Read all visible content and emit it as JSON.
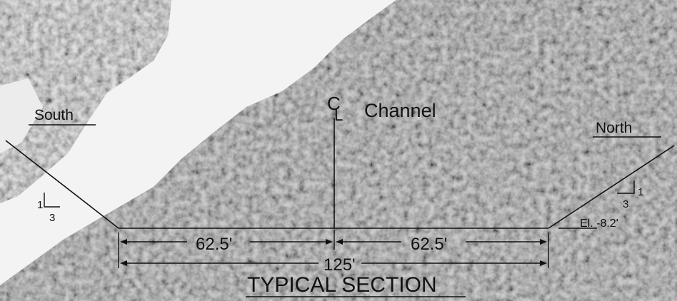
{
  "title": "TYPICAL SECTION",
  "centerline": {
    "symbol_c": "C",
    "symbol_l": "L",
    "label": "Channel"
  },
  "banks": {
    "south": "South",
    "north": "North"
  },
  "slope": {
    "rise": "1",
    "run": "3"
  },
  "dimensions": {
    "half_left": "62.5'",
    "half_right": "62.5'",
    "total": "125'"
  },
  "elevation": "El. -8.2'",
  "colors": {
    "line": "#111111",
    "foliage": "#8f8f8f",
    "open_area": "#f2f2f2"
  }
}
